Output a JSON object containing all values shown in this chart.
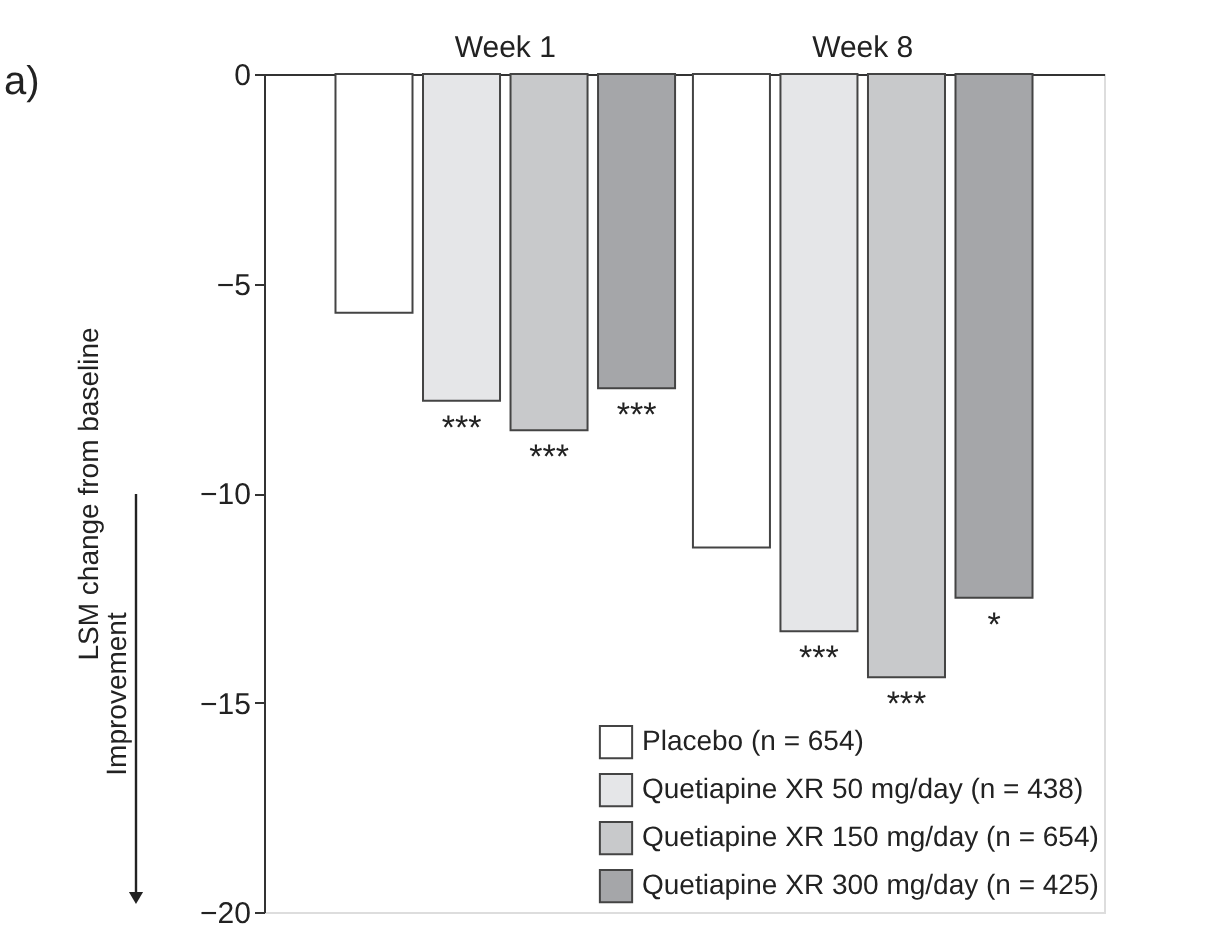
{
  "chart_data": {
    "type": "bar",
    "ylabel": "LSM change from baseline",
    "categories": [
      "Week 1",
      "Week 8"
    ],
    "series": [
      {
        "name": "Placebo (n = 654)",
        "color": "#ffffff",
        "values": [
          -5.7,
          -11.3
        ]
      },
      {
        "name": "Quetiapine XR 50 mg/day (n = 438)",
        "color": "#e5e6e8",
        "values": [
          -7.8,
          -13.3
        ],
        "value_labels": [
          "***",
          "***"
        ]
      },
      {
        "name": "Quetiapine XR 150 mg/day (n = 654)",
        "color": "#c8c9cb",
        "values": [
          -8.5,
          -14.4
        ],
        "value_labels": [
          "***",
          "***"
        ]
      },
      {
        "name": "Quetiapine XR 300 mg/day (n = 425)",
        "color": "#a5a6a9",
        "values": [
          -7.5,
          -12.5
        ],
        "value_labels": [
          "***",
          "*"
        ]
      }
    ],
    "ylim": [
      -20,
      0
    ],
    "yticks": [
      0,
      -5,
      -10,
      -15,
      -20
    ],
    "grid": false,
    "legend": "bottom right",
    "annotations": [
      "a)",
      "Improvement"
    ]
  }
}
